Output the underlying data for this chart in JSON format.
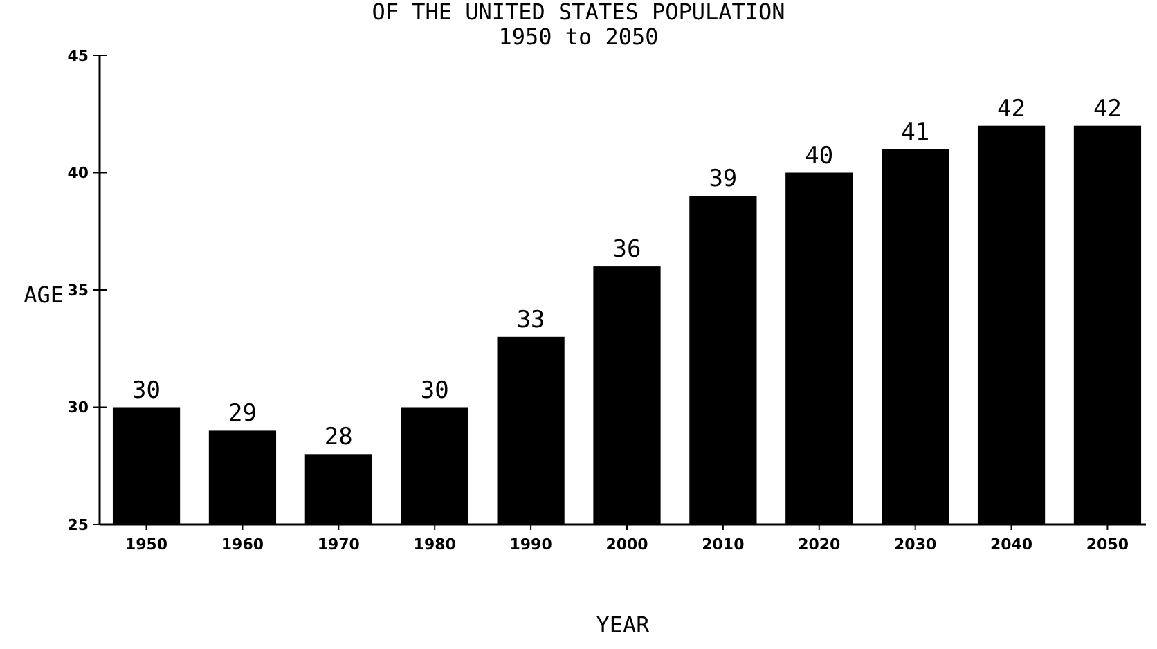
{
  "chart_data": {
    "type": "bar",
    "title": "OF THE UNITED STATES POPULATION",
    "subtitle": "1950 to 2050",
    "xlabel": "YEAR",
    "ylabel": "AGE",
    "categories": [
      "1950",
      "1960",
      "1970",
      "1980",
      "1990",
      "2000",
      "2010",
      "2020",
      "2030",
      "2040",
      "2050"
    ],
    "values": [
      30,
      29,
      28,
      30,
      33,
      36,
      39,
      40,
      41,
      42,
      42
    ],
    "color": "#000000",
    "ylim": [
      25,
      45
    ],
    "yticks": [
      25,
      30,
      35,
      40,
      45
    ],
    "data_labels": true
  }
}
